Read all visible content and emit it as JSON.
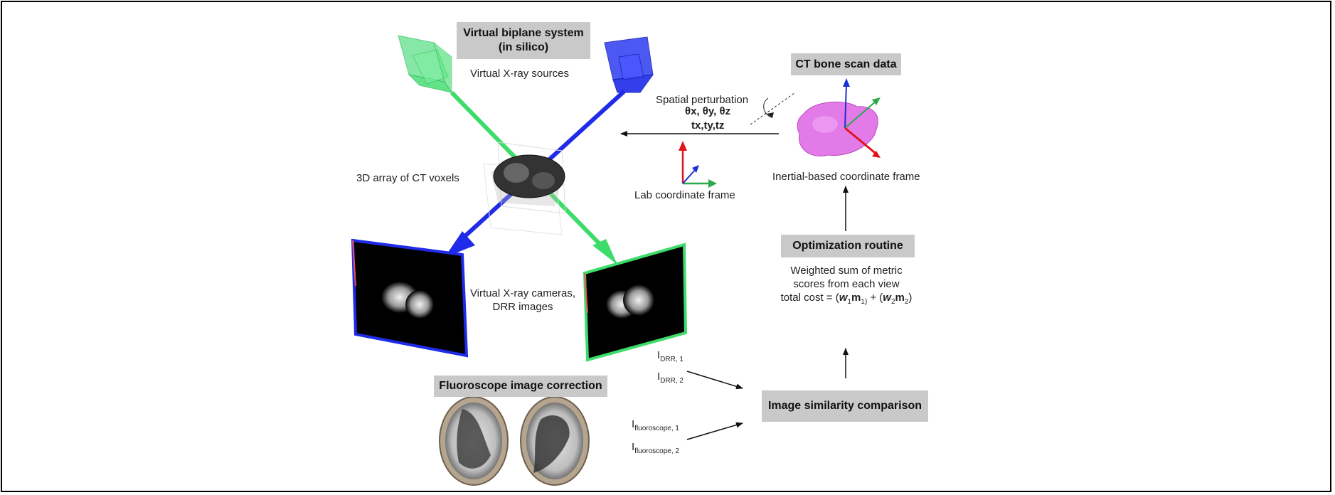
{
  "boxes": {
    "virtual_biplane_line1": "Virtual biplane system",
    "virtual_biplane_line2": "(in silico)",
    "ct_bone_scan": "CT bone scan data",
    "optimization": "Optimization routine",
    "fluoroscope_correction": "Fluoroscope image correction",
    "similarity": "Image similarity comparison"
  },
  "labels": {
    "xray_sources": "Virtual X-ray sources",
    "spatial_perturbation": "Spatial perturbation",
    "theta": "θx, θy, θz",
    "translation": "tx,ty,tz",
    "ct_voxels": "3D array of CT voxels",
    "lab_frame": "Lab coordinate frame",
    "inertial_frame": "Inertial-based coordinate frame",
    "cameras_line1": "Virtual X-ray cameras,",
    "cameras_line2": "DRR images",
    "weighted_line1": "Weighted sum of metric",
    "weighted_line2": "scores from each view",
    "cost_prefix": "total cost = (",
    "w1": "w",
    "w1_sub": "1",
    "m1": "m",
    "m1_sub": "1)",
    "cost_mid": " + (",
    "w2": "w",
    "w2_sub": "2",
    "m2": "m",
    "m2_sub": "2",
    "cost_suffix": ")",
    "i_letter": "I",
    "drr1_sub": "DRR, 1",
    "drr2_sub": "DRR, 2",
    "fluoro1_sub": "fluoroscope, 1",
    "fluoro2_sub": "fluoroscope, 2"
  },
  "colors": {
    "green_source": "#3ddc6a",
    "blue_source": "#1f2be8",
    "bone_pink": "#e27ae8",
    "axis_red": "#e0141e",
    "axis_blue": "#1c2fd6",
    "axis_green": "#2aa84a",
    "box_gray": "#c9c9c9"
  }
}
